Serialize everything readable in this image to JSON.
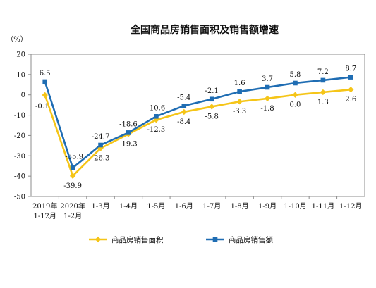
{
  "chart_data": {
    "type": "line",
    "title": "全国商品房销售面积及销售额增速",
    "ylabel": "（%）",
    "ylim": [
      -50,
      20
    ],
    "yticks": [
      20,
      10,
      0,
      -10,
      -20,
      -30,
      -40,
      -50
    ],
    "grid": false,
    "legend_position": "bottom",
    "categories": [
      [
        "2019年",
        "1-12月"
      ],
      [
        "2020年",
        "1-2月"
      ],
      [
        "1-3月"
      ],
      [
        "1-4月"
      ],
      [
        "1-5月"
      ],
      [
        "1-6月"
      ],
      [
        "1-7月"
      ],
      [
        "1-8月"
      ],
      [
        "1-9月"
      ],
      [
        "1-10月"
      ],
      [
        "1-11月"
      ],
      [
        "1-12月"
      ]
    ],
    "series": [
      {
        "name": "商品房销售面积",
        "color": "#f5c518",
        "marker": "diamond",
        "values": [
          -0.1,
          -39.9,
          -26.3,
          -19.3,
          -12.3,
          -8.4,
          -5.8,
          -3.3,
          -1.8,
          0.0,
          1.3,
          2.6
        ],
        "labels": [
          "-0.1",
          "-39.9",
          "-26.3",
          "-19.3",
          "-12.3",
          "-8.4",
          "-5.8",
          "-3.3",
          "-1.8",
          "0.0",
          "1.3",
          "2.6"
        ]
      },
      {
        "name": "商品房销售额",
        "color": "#1f6db3",
        "marker": "square",
        "values": [
          6.5,
          -35.9,
          -24.7,
          -18.6,
          -10.6,
          -5.4,
          -2.1,
          1.6,
          3.7,
          5.8,
          7.2,
          8.7
        ],
        "labels": [
          "6.5",
          "-35.9",
          "-24.7",
          "-18.6",
          "-10.6",
          "-5.4",
          "-2.1",
          "1.6",
          "3.7",
          "5.8",
          "7.2",
          "8.7"
        ]
      }
    ]
  }
}
